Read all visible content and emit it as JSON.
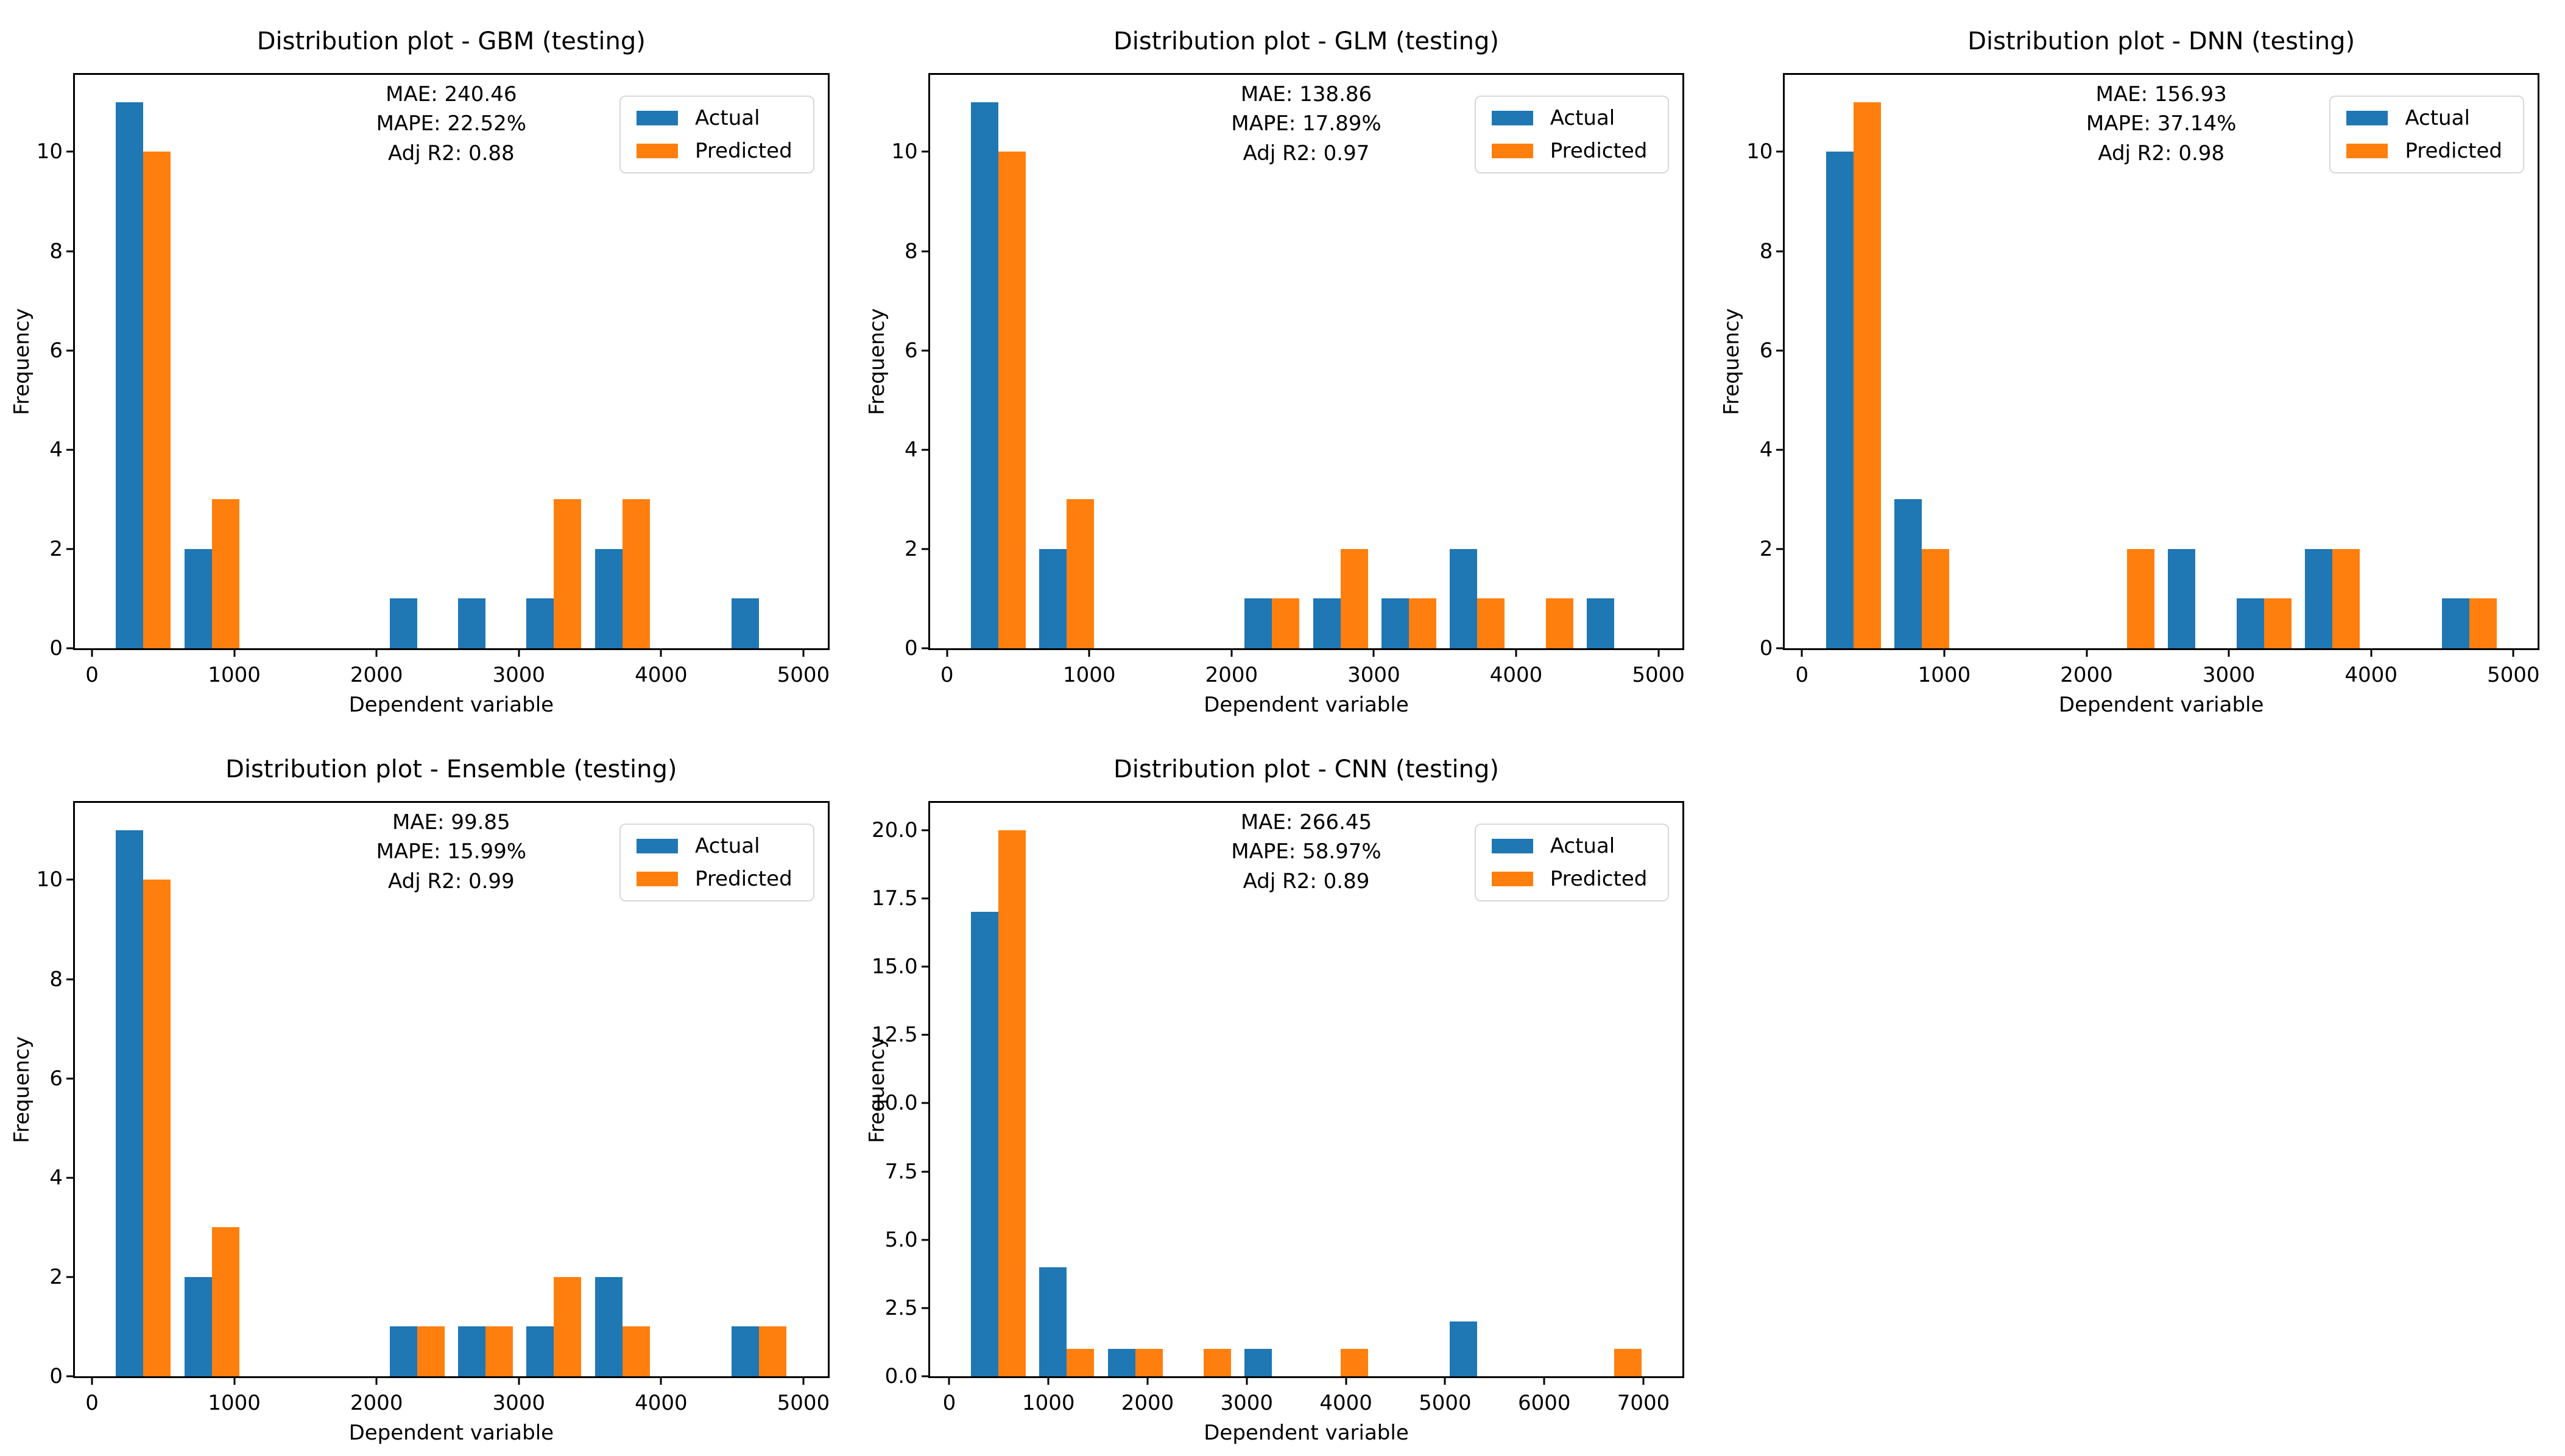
{
  "figure": {
    "background": "#ffffff",
    "colors": {
      "actual": "#1f77b4",
      "predicted": "#ff7f0e",
      "text": "#000000",
      "spine": "#000000",
      "legend_border": "#d8d8d8"
    }
  },
  "chart_data": [
    {
      "id": "gbm",
      "type": "bar",
      "title": "Distribution plot - GBM (testing)",
      "stats_lines": [
        "MAE: 240.46",
        "MAPE: 22.52%",
        "Adj R2: 0.88"
      ],
      "stats": {
        "mae": 240.46,
        "mape_pct": 22.52,
        "adj_r2": 0.88
      },
      "xlabel": "Dependent variable",
      "ylabel": "Frequency",
      "legend": [
        "Actual",
        "Predicted"
      ],
      "legend_position": "upper right",
      "grid": false,
      "xlim": [
        -120,
        5170
      ],
      "ylim": [
        0,
        11.55
      ],
      "x_ticks": [
        0,
        1000,
        2000,
        3000,
        4000,
        5000
      ],
      "x_tick_labels": [
        "0",
        "1000",
        "2000",
        "3000",
        "4000",
        "5000"
      ],
      "y_ticks": [
        0,
        2,
        4,
        6,
        8,
        10
      ],
      "y_tick_labels": [
        "0",
        "2",
        "4",
        "6",
        "8",
        "10"
      ],
      "bin_width": 481,
      "bins": [
        {
          "start": 120,
          "actual": 11,
          "predicted": 10
        },
        {
          "start": 601,
          "actual": 2,
          "predicted": 3
        },
        {
          "start": 2044,
          "actual": 1,
          "predicted": 0
        },
        {
          "start": 2525,
          "actual": 1,
          "predicted": 0
        },
        {
          "start": 3006,
          "actual": 1,
          "predicted": 3
        },
        {
          "start": 3487,
          "actual": 2,
          "predicted": 3
        },
        {
          "start": 4449,
          "actual": 1,
          "predicted": 0
        }
      ]
    },
    {
      "id": "glm",
      "type": "bar",
      "title": "Distribution plot - GLM (testing)",
      "stats_lines": [
        "MAE: 138.86",
        "MAPE: 17.89%",
        "Adj R2: 0.97"
      ],
      "stats": {
        "mae": 138.86,
        "mape_pct": 17.89,
        "adj_r2": 0.97
      },
      "xlabel": "Dependent variable",
      "ylabel": "Frequency",
      "legend": [
        "Actual",
        "Predicted"
      ],
      "legend_position": "upper right",
      "grid": false,
      "xlim": [
        -120,
        5170
      ],
      "ylim": [
        0,
        11.55
      ],
      "x_ticks": [
        0,
        1000,
        2000,
        3000,
        4000,
        5000
      ],
      "x_tick_labels": [
        "0",
        "1000",
        "2000",
        "3000",
        "4000",
        "5000"
      ],
      "y_ticks": [
        0,
        2,
        4,
        6,
        8,
        10
      ],
      "y_tick_labels": [
        "0",
        "2",
        "4",
        "6",
        "8",
        "10"
      ],
      "bin_width": 481,
      "bins": [
        {
          "start": 120,
          "actual": 11,
          "predicted": 10
        },
        {
          "start": 601,
          "actual": 2,
          "predicted": 3
        },
        {
          "start": 2044,
          "actual": 1,
          "predicted": 1
        },
        {
          "start": 2525,
          "actual": 1,
          "predicted": 2
        },
        {
          "start": 3006,
          "actual": 1,
          "predicted": 1
        },
        {
          "start": 3487,
          "actual": 2,
          "predicted": 1
        },
        {
          "start": 3968,
          "actual": 0,
          "predicted": 1
        },
        {
          "start": 4449,
          "actual": 1,
          "predicted": 0
        }
      ]
    },
    {
      "id": "dnn",
      "type": "bar",
      "title": "Distribution plot - DNN (testing)",
      "stats_lines": [
        "MAE: 156.93",
        "MAPE: 37.14%",
        "Adj R2: 0.98"
      ],
      "stats": {
        "mae": 156.93,
        "mape_pct": 37.14,
        "adj_r2": 0.98
      },
      "xlabel": "Dependent variable",
      "ylabel": "Frequency",
      "legend": [
        "Actual",
        "Predicted"
      ],
      "legend_position": "upper right",
      "grid": false,
      "xlim": [
        -120,
        5170
      ],
      "ylim": [
        0,
        11.55
      ],
      "x_ticks": [
        0,
        1000,
        2000,
        3000,
        4000,
        5000
      ],
      "x_tick_labels": [
        "0",
        "1000",
        "2000",
        "3000",
        "4000",
        "5000"
      ],
      "y_ticks": [
        0,
        2,
        4,
        6,
        8,
        10
      ],
      "y_tick_labels": [
        "0",
        "2",
        "4",
        "6",
        "8",
        "10"
      ],
      "bin_width": 481,
      "bins": [
        {
          "start": 120,
          "actual": 10,
          "predicted": 11
        },
        {
          "start": 601,
          "actual": 3,
          "predicted": 2
        },
        {
          "start": 2044,
          "actual": 0,
          "predicted": 2
        },
        {
          "start": 2525,
          "actual": 2,
          "predicted": 0
        },
        {
          "start": 3006,
          "actual": 1,
          "predicted": 1
        },
        {
          "start": 3487,
          "actual": 2,
          "predicted": 2
        },
        {
          "start": 4449,
          "actual": 1,
          "predicted": 1
        }
      ]
    },
    {
      "id": "ensemble",
      "type": "bar",
      "title": "Distribution plot - Ensemble (testing)",
      "stats_lines": [
        "MAE: 99.85",
        "MAPE: 15.99%",
        "Adj R2: 0.99"
      ],
      "stats": {
        "mae": 99.85,
        "mape_pct": 15.99,
        "adj_r2": 0.99
      },
      "xlabel": "Dependent variable",
      "ylabel": "Frequency",
      "legend": [
        "Actual",
        "Predicted"
      ],
      "legend_position": "upper right",
      "grid": false,
      "xlim": [
        -120,
        5170
      ],
      "ylim": [
        0,
        11.55
      ],
      "x_ticks": [
        0,
        1000,
        2000,
        3000,
        4000,
        5000
      ],
      "x_tick_labels": [
        "0",
        "1000",
        "2000",
        "3000",
        "4000",
        "5000"
      ],
      "y_ticks": [
        0,
        2,
        4,
        6,
        8,
        10
      ],
      "y_tick_labels": [
        "0",
        "2",
        "4",
        "6",
        "8",
        "10"
      ],
      "bin_width": 481,
      "bins": [
        {
          "start": 120,
          "actual": 11,
          "predicted": 10
        },
        {
          "start": 601,
          "actual": 2,
          "predicted": 3
        },
        {
          "start": 2044,
          "actual": 1,
          "predicted": 1
        },
        {
          "start": 2525,
          "actual": 1,
          "predicted": 1
        },
        {
          "start": 3006,
          "actual": 1,
          "predicted": 2
        },
        {
          "start": 3487,
          "actual": 2,
          "predicted": 1
        },
        {
          "start": 4449,
          "actual": 1,
          "predicted": 1
        }
      ]
    },
    {
      "id": "cnn",
      "type": "bar",
      "title": "Distribution plot - CNN (testing)",
      "stats_lines": [
        "MAE: 266.45",
        "MAPE: 58.97%",
        "Adj R2: 0.89"
      ],
      "stats": {
        "mae": 266.45,
        "mape_pct": 58.97,
        "adj_r2": 0.89
      },
      "xlabel": "Dependent variable",
      "ylabel": "Frequency",
      "legend": [
        "Actual",
        "Predicted"
      ],
      "legend_position": "upper right",
      "grid": false,
      "xlim": [
        -195,
        7395
      ],
      "ylim": [
        0,
        21
      ],
      "x_ticks": [
        0,
        1000,
        2000,
        3000,
        4000,
        5000,
        6000,
        7000
      ],
      "x_tick_labels": [
        "0",
        "1000",
        "2000",
        "3000",
        "4000",
        "5000",
        "6000",
        "7000"
      ],
      "y_ticks": [
        0,
        2.5,
        5,
        7.5,
        10,
        12.5,
        15,
        17.5,
        20
      ],
      "y_tick_labels": [
        "0.0",
        "2.5",
        "5.0",
        "7.5",
        "10.0",
        "12.5",
        "15.0",
        "17.5",
        "20.0"
      ],
      "bin_width": 690,
      "bins": [
        {
          "start": 150,
          "actual": 17,
          "predicted": 20
        },
        {
          "start": 840,
          "actual": 4,
          "predicted": 1
        },
        {
          "start": 1530,
          "actual": 1,
          "predicted": 1
        },
        {
          "start": 2220,
          "actual": 0,
          "predicted": 1
        },
        {
          "start": 2910,
          "actual": 1,
          "predicted": 0
        },
        {
          "start": 3600,
          "actual": 0,
          "predicted": 1
        },
        {
          "start": 4980,
          "actual": 2,
          "predicted": 0
        },
        {
          "start": 6360,
          "actual": 0,
          "predicted": 1
        }
      ]
    }
  ]
}
